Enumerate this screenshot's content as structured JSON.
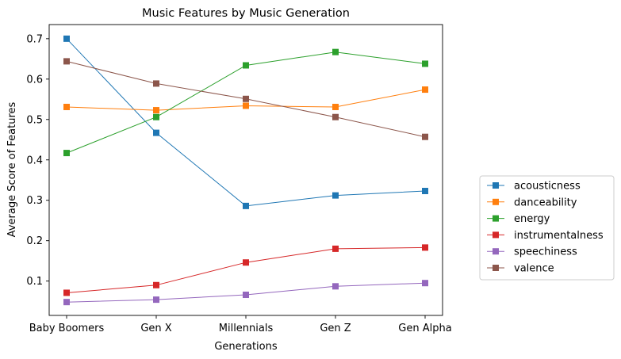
{
  "chart_data": {
    "type": "line",
    "title": "Music Features by Music Generation",
    "xlabel": "Generations",
    "ylabel": "Average Score of Features",
    "categories": [
      "Baby Boomers",
      "Gen X",
      "Millennials",
      "Gen Z",
      "Gen Alpha"
    ],
    "ylim": [
      0.015,
      0.735
    ],
    "yticks": [
      0.1,
      0.2,
      0.3,
      0.4,
      0.5,
      0.6,
      0.7
    ],
    "grid": false,
    "legend_placement": "outside-right",
    "series": [
      {
        "name": "acousticness",
        "color": "#1f77b4",
        "values": [
          0.7,
          0.467,
          0.286,
          0.312,
          0.323
        ]
      },
      {
        "name": "danceability",
        "color": "#ff7f0e",
        "values": [
          0.531,
          0.523,
          0.534,
          0.531,
          0.574
        ]
      },
      {
        "name": "energy",
        "color": "#2ca02c",
        "values": [
          0.417,
          0.506,
          0.634,
          0.667,
          0.638
        ]
      },
      {
        "name": "instrumentalness",
        "color": "#d62728",
        "values": [
          0.071,
          0.09,
          0.146,
          0.18,
          0.183
        ]
      },
      {
        "name": "speechiness",
        "color": "#9467bd",
        "values": [
          0.048,
          0.054,
          0.066,
          0.087,
          0.095
        ]
      },
      {
        "name": "valence",
        "color": "#8c564b",
        "values": [
          0.644,
          0.589,
          0.551,
          0.506,
          0.457
        ]
      }
    ]
  }
}
